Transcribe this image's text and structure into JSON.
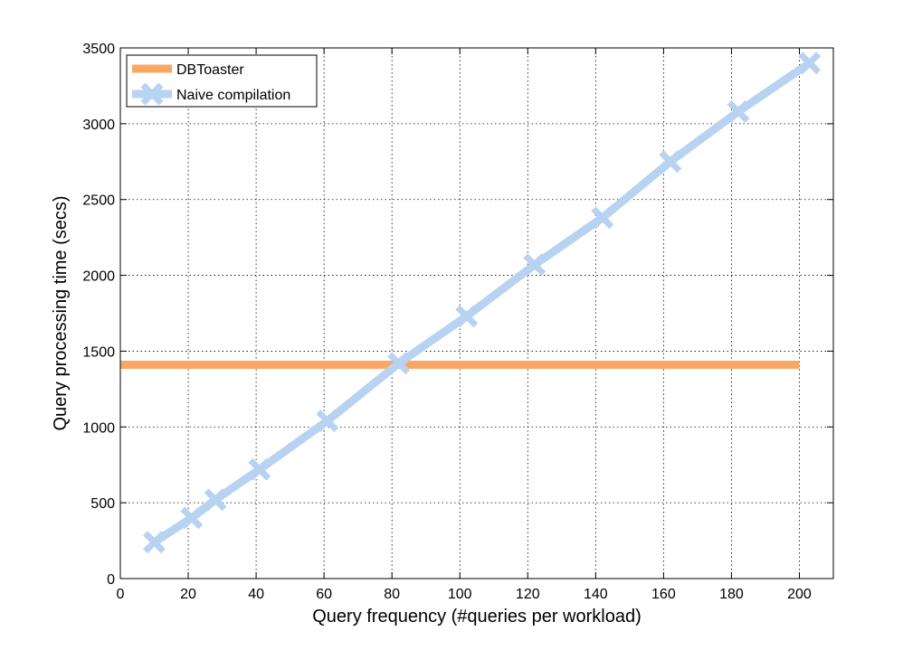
{
  "chart_data": {
    "type": "line",
    "title": "",
    "xlabel": "Query frequency (#queries per workload)",
    "ylabel": "Query processing time (secs)",
    "xlim": [
      0,
      210
    ],
    "ylim": [
      0,
      3500
    ],
    "xticks": [
      0,
      20,
      40,
      60,
      80,
      100,
      120,
      140,
      160,
      180,
      200
    ],
    "yticks": [
      0,
      500,
      1000,
      1500,
      2000,
      2500,
      3000,
      3500
    ],
    "grid": true,
    "legend_position": "top-left",
    "series": [
      {
        "name": "DBToaster",
        "color": "#f9a863",
        "marker": "none",
        "x": [
          0,
          200
        ],
        "y": [
          1410,
          1410
        ]
      },
      {
        "name": "Naive compilation",
        "color": "#b8d3f2",
        "marker": "x",
        "x": [
          10,
          21,
          28,
          41,
          61,
          82,
          102,
          122,
          142,
          162,
          182,
          203
        ],
        "y": [
          240,
          400,
          520,
          720,
          1040,
          1420,
          1730,
          2070,
          2380,
          2750,
          3080,
          3400
        ]
      }
    ]
  }
}
